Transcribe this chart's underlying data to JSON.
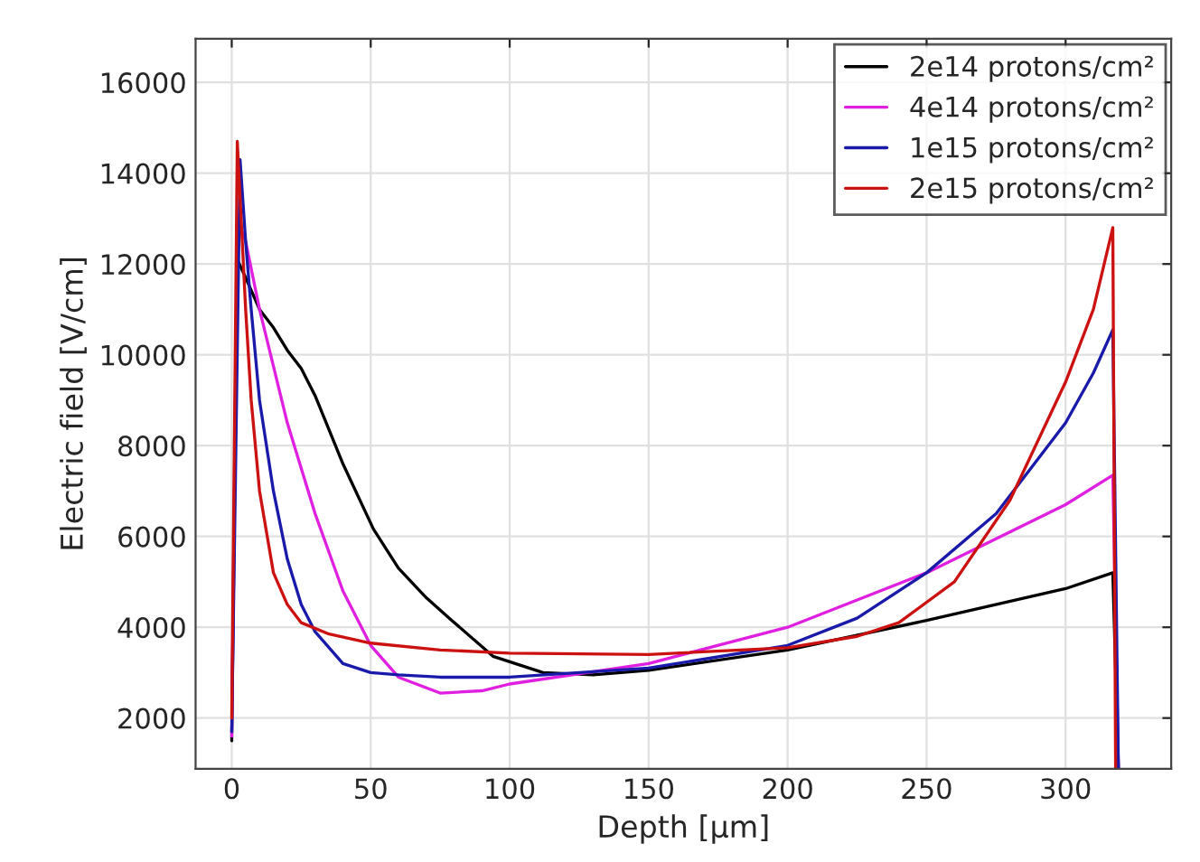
{
  "chart_data": {
    "type": "line",
    "xlabel": "Depth [μm]",
    "ylabel": "Electric field [V/cm]",
    "xlim": [
      -13,
      338
    ],
    "ylim": [
      880,
      16960
    ],
    "xticks": [
      0,
      50,
      100,
      150,
      200,
      250,
      300
    ],
    "yticks": [
      2000,
      4000,
      6000,
      8000,
      10000,
      12000,
      14000,
      16000
    ],
    "grid": true,
    "legend": "top right",
    "series": [
      {
        "name": "2e14 protons/cm²",
        "color": "#000000",
        "x": [
          0,
          2,
          5,
          10,
          15,
          20,
          25,
          30,
          40,
          51,
          60,
          70,
          79,
          94,
          112,
          130,
          150,
          200,
          250,
          300,
          317,
          319
        ],
        "values": [
          1500,
          12100,
          11700,
          11000,
          10600,
          10100,
          9700,
          9100,
          7600,
          6160,
          5300,
          4650,
          4160,
          3360,
          3000,
          2950,
          3050,
          3500,
          4150,
          4850,
          5200,
          900
        ]
      },
      {
        "name": "4e14 protons/cm²",
        "color": "#e020e0",
        "x": [
          0,
          2,
          5,
          10,
          20,
          30,
          40,
          50,
          60,
          75,
          90,
          100,
          150,
          200,
          250,
          300,
          317,
          319
        ],
        "values": [
          1600,
          13000,
          12500,
          11000,
          8500,
          6500,
          4800,
          3600,
          2900,
          2550,
          2600,
          2750,
          3200,
          4000,
          5200,
          6700,
          7350,
          900
        ]
      },
      {
        "name": "1e15 protons/cm²",
        "color": "#1a1aaa",
        "x": [
          0,
          3,
          5,
          7,
          10,
          15,
          20,
          25,
          30,
          40,
          50,
          60,
          75,
          100,
          150,
          200,
          225,
          250,
          275,
          300,
          310,
          317,
          319
        ],
        "values": [
          1700,
          14300,
          12500,
          11000,
          9000,
          7000,
          5500,
          4500,
          3900,
          3200,
          3000,
          2950,
          2900,
          2900,
          3100,
          3600,
          4200,
          5200,
          6500,
          8500,
          9600,
          10550,
          900
        ]
      },
      {
        "name": "2e15 protons/cm²",
        "color": "#cc1111",
        "x": [
          0,
          2,
          5,
          7,
          10,
          15,
          20,
          25,
          35,
          50,
          75,
          100,
          150,
          200,
          225,
          240,
          260,
          280,
          300,
          310,
          317,
          318
        ],
        "values": [
          2000,
          14700,
          11000,
          9000,
          7000,
          5200,
          4500,
          4100,
          3850,
          3650,
          3500,
          3430,
          3400,
          3550,
          3800,
          4100,
          5000,
          6800,
          9400,
          11000,
          12800,
          900
        ]
      }
    ]
  }
}
